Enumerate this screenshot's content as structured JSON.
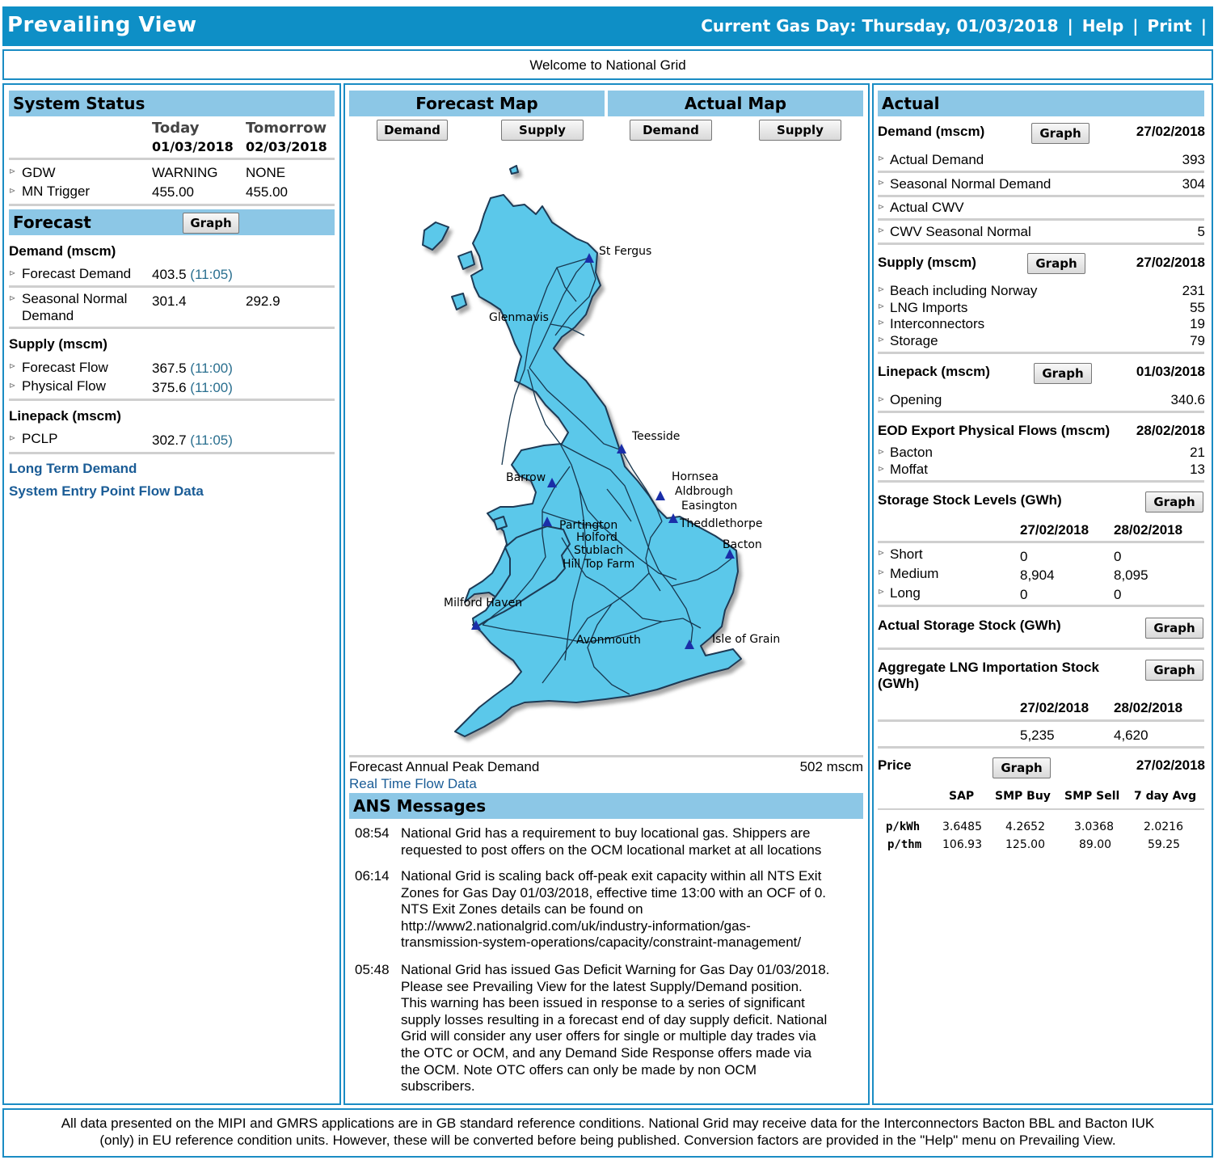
{
  "topbar": {
    "title": "Prevailing View",
    "gas_day_label": "Current Gas Day: Thursday, 01/03/2018",
    "sep": "|",
    "help": "Help",
    "print": "Print"
  },
  "welcome": "Welcome to National Grid",
  "system_status": {
    "title": "System Status",
    "col_today": "Today",
    "col_tomorrow": "Tomorrow",
    "date_today": "01/03/2018",
    "date_tomorrow": "02/03/2018",
    "rows": [
      {
        "label": "GDW",
        "today": "WARNING",
        "tomorrow": "NONE"
      },
      {
        "label": "MN Trigger",
        "today": "455.00",
        "tomorrow": "455.00"
      }
    ]
  },
  "forecast": {
    "title": "Forecast",
    "graph": "Graph",
    "demand_title": "Demand (mscm)",
    "forecast_demand_label": "Forecast Demand",
    "forecast_demand_value": "403.5",
    "forecast_demand_time": "(11:05)",
    "seasonal_label_1": "Seasonal Normal",
    "seasonal_label_2": "Demand",
    "seasonal_today": "301.4",
    "seasonal_tomorrow": "292.9",
    "supply_title": "Supply (mscm)",
    "forecast_flow_label": "Forecast Flow",
    "forecast_flow_value": "367.5",
    "forecast_flow_time": "(11:00)",
    "physical_flow_label": "Physical Flow",
    "physical_flow_value": "375.6",
    "physical_flow_time": "(11:00)",
    "linepack_title": "Linepack (mscm)",
    "pclp_label": "PCLP",
    "pclp_value": "302.7",
    "pclp_time": "(11:05)",
    "long_term_link": "Long Term Demand",
    "entry_point_link": "System Entry Point Flow Data"
  },
  "maps": {
    "forecast_title": "Forecast Map",
    "actual_title": "Actual Map",
    "demand_btn": "Demand",
    "supply_btn": "Supply",
    "labels": {
      "st_fergus": "St Fergus",
      "glenmavis": "Glenmavis",
      "teesside": "Teesside",
      "barrow": "Barrow",
      "hornsea": "Hornsea",
      "aldbrough": "Aldbrough",
      "easington": "Easington",
      "theddlethorpe": "Theddlethorpe",
      "partington": "Partington",
      "holford": "Holford",
      "stublach": "Stublach",
      "hill_top_farm": "Hill Top Farm",
      "bacton": "Bacton",
      "milford_haven": "Milford Haven",
      "avonmouth": "Avonmouth",
      "isle_of_grain": "Isle of Grain"
    },
    "peak_label": "Forecast Annual Peak Demand",
    "peak_value": "502 mscm",
    "real_time_link": "Real Time Flow Data"
  },
  "ans": {
    "title": "ANS Messages",
    "messages": [
      {
        "time": "08:54",
        "lines": [
          "National Grid has a requirement to buy locational gas. Shippers are",
          "requested to post offers on the OCM locational market at all locations"
        ]
      },
      {
        "time": "06:14",
        "lines": [
          "National Grid is scaling back off-peak exit capacity within all NTS Exit",
          "Zones for Gas Day 01/03/2018, effective time 13:00 with an OCF of 0.",
          "NTS Exit Zones details can be found on",
          "http://www2.nationalgrid.com/uk/industry-information/gas-",
          "transmission-system-operations/capacity/constraint-management/"
        ]
      },
      {
        "time": "05:48",
        "lines": [
          "National Grid has issued Gas Deficit Warning for Gas Day 01/03/2018.",
          "Please see Prevailing View for the latest Supply/Demand position.",
          "This warning has been issued in response to a series of significant",
          "supply losses resulting in a forecast end of day supply deficit. National",
          "Grid will consider any user offers for single or multiple day trades via",
          "the OTC or OCM, and any Demand Side Response offers made via",
          "the OCM. Note OTC offers can only be made by non OCM",
          "subscribers."
        ]
      }
    ]
  },
  "actual": {
    "title": "Actual",
    "graph": "Graph",
    "demand_title": "Demand (mscm)",
    "demand_date": "27/02/2018",
    "demand_rows": [
      {
        "label": "Actual Demand",
        "value": "393"
      },
      {
        "label": "Seasonal Normal Demand",
        "value": "304"
      },
      {
        "label": "Actual CWV",
        "value": ""
      },
      {
        "label": "CWV Seasonal Normal",
        "value": "5"
      }
    ],
    "supply_title": "Supply (mscm)",
    "supply_date": "27/02/2018",
    "supply_rows": [
      {
        "label": "Beach including Norway",
        "value": "231"
      },
      {
        "label": "LNG Imports",
        "value": "55"
      },
      {
        "label": "Interconnectors",
        "value": "19"
      },
      {
        "label": "Storage",
        "value": "79"
      }
    ],
    "linepack_title": "Linepack (mscm)",
    "linepack_date": "01/03/2018",
    "opening_label": "Opening",
    "opening_value": "340.6",
    "eod_title": "EOD Export Physical Flows (mscm)",
    "eod_date": "28/02/2018",
    "eod_rows": [
      {
        "label": "Bacton",
        "value": "21"
      },
      {
        "label": "Moffat",
        "value": "13"
      }
    ],
    "storage_title": "Storage Stock Levels (GWh)",
    "storage_date1": "27/02/2018",
    "storage_date2": "28/02/2018",
    "storage_rows": [
      {
        "label": "Short",
        "v1": "0",
        "v2": "0"
      },
      {
        "label": "Medium",
        "v1": "8,904",
        "v2": "8,095"
      },
      {
        "label": "Long",
        "v1": "0",
        "v2": "0"
      }
    ],
    "actual_storage_title": "Actual Storage Stock (GWh)",
    "lng_title_1": "Aggregate LNG Importation Stock",
    "lng_title_2": "(GWh)",
    "lng_date1": "27/02/2018",
    "lng_date2": "28/02/2018",
    "lng_v1": "5,235",
    "lng_v2": "4,620",
    "price_title": "Price",
    "price_date": "27/02/2018",
    "price_cols": [
      "SAP",
      "SMP Buy",
      "SMP Sell",
      "7 day Avg"
    ],
    "price_rows": [
      {
        "unit": "p/kWh",
        "values": [
          "3.6485",
          "4.2652",
          "3.0368",
          "2.0216"
        ]
      },
      {
        "unit": "p/thm",
        "values": [
          "106.93",
          "125.00",
          "89.00",
          "59.25"
        ]
      }
    ]
  },
  "footer": {
    "line1": "All data presented on the MIPI and GMRS applications are in GB standard reference conditions. National Grid may receive data for the Interconnectors Bacton BBL and Bacton IUK",
    "line2": "(only) in EU reference condition units. However, these will be converted before being published. Conversion factors are provided in the \"Help\" menu on Prevailing View."
  },
  "colors": {
    "header": "#0e8fc6",
    "section": "#8cc7e6",
    "map_fill": "#5bc8ea",
    "border": "#1a8cc4"
  }
}
